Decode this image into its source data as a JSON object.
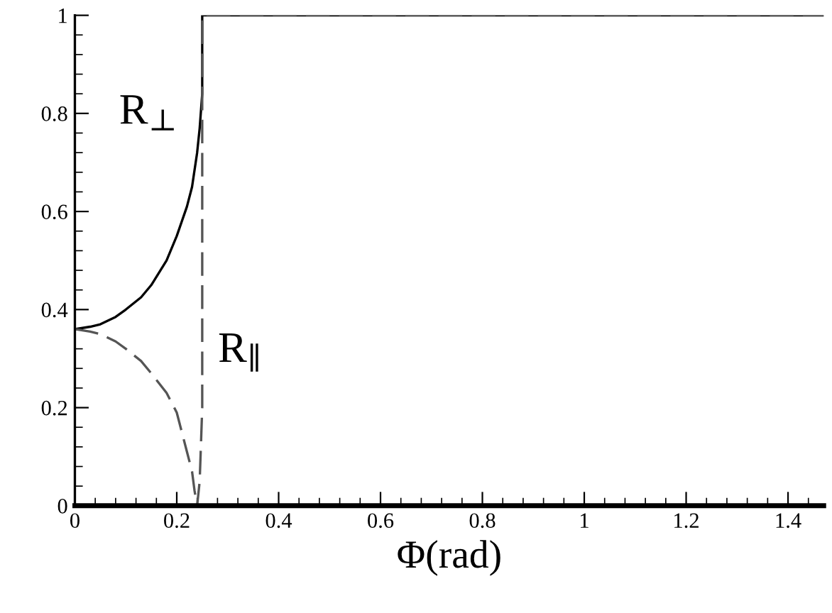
{
  "chart_data": {
    "type": "line",
    "xlabel": "Φ(rad)",
    "xlim": [
      0,
      1.47
    ],
    "ylim": [
      0,
      1
    ],
    "xticks": [
      0,
      0.2,
      0.4,
      0.6,
      0.8,
      1,
      1.2,
      1.4
    ],
    "yticks": [
      0,
      0.2,
      0.4,
      0.6,
      0.8,
      1
    ],
    "grid": false,
    "marker": "none",
    "series": [
      {
        "name": "R$_{⊥}$",
        "color": "#000000",
        "line_style": "solid",
        "x": [
          0,
          0.03,
          0.05,
          0.08,
          0.1,
          0.13,
          0.15,
          0.18,
          0.2,
          0.22,
          0.23,
          0.24,
          0.245,
          0.25,
          0.25,
          1.47
        ],
        "values": [
          0.36,
          0.365,
          0.37,
          0.385,
          0.4,
          0.425,
          0.45,
          0.5,
          0.55,
          0.61,
          0.65,
          0.72,
          0.77,
          0.84,
          1,
          1
        ]
      },
      {
        "name": "R$_{∥}$",
        "color": "#555555",
        "line_style": "dashed",
        "x": [
          0,
          0.03,
          0.05,
          0.08,
          0.1,
          0.13,
          0.15,
          0.18,
          0.2,
          0.21,
          0.22,
          0.23,
          0.235,
          0.24,
          0.245,
          0.25,
          0.25,
          1.47
        ],
        "values": [
          0.36,
          0.355,
          0.35,
          0.335,
          0.32,
          0.295,
          0.27,
          0.23,
          0.19,
          0.15,
          0.11,
          0.07,
          0.03,
          0,
          0.05,
          0.2,
          1,
          1
        ]
      }
    ]
  }
}
